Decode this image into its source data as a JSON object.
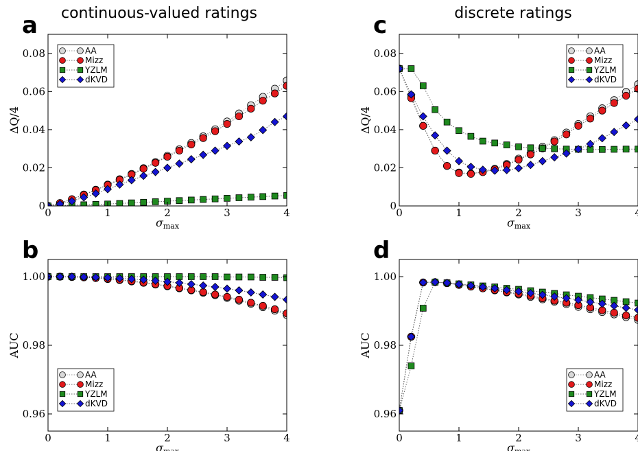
{
  "figure": {
    "col_titles": [
      "continuous-valued ratings",
      "discrete ratings"
    ]
  },
  "series_styles": {
    "AA": {
      "color": "#d9d9d9",
      "marker": "circle",
      "line": "#999999"
    },
    "Mizz": {
      "color": "#e31a1c",
      "marker": "circle",
      "line": "#666666"
    },
    "YZLM": {
      "color": "#1f8a1f",
      "marker": "square",
      "line": "#666666"
    },
    "dKVD": {
      "color": "#1414d2",
      "marker": "diamond",
      "line": "#666666"
    }
  },
  "chart_data": [
    {
      "panel": "a",
      "type": "line",
      "title": "",
      "xlabel": "σ",
      "xlabel_sub": "max",
      "ylabel": "ΔQ/4",
      "xlim": [
        0,
        4
      ],
      "ylim": [
        0,
        0.09
      ],
      "xticks": [
        0,
        1,
        2,
        3,
        4
      ],
      "xtick_labels": [
        "0",
        "1",
        "2",
        "3",
        "4"
      ],
      "yticks": [
        0,
        0.02,
        0.04,
        0.06,
        0.08
      ],
      "ytick_labels": [
        "0",
        "0.02",
        "0.04",
        "0.06",
        "0.08"
      ],
      "legend": "top-left",
      "x": [
        0,
        0.2,
        0.4,
        0.6,
        0.8,
        1.0,
        1.2,
        1.4,
        1.6,
        1.8,
        2.0,
        2.2,
        2.4,
        2.6,
        2.8,
        3.0,
        3.2,
        3.4,
        3.6,
        3.8,
        4.0
      ],
      "series": [
        {
          "name": "AA",
          "values": [
            0,
            0.0015,
            0.0035,
            0.006,
            0.0085,
            0.0112,
            0.014,
            0.0168,
            0.0198,
            0.023,
            0.0263,
            0.0297,
            0.033,
            0.0365,
            0.0402,
            0.0443,
            0.0485,
            0.0528,
            0.0572,
            0.0615,
            0.0658
          ]
        },
        {
          "name": "Mizz",
          "values": [
            0,
            0.0015,
            0.0035,
            0.0058,
            0.0083,
            0.011,
            0.0137,
            0.0165,
            0.0195,
            0.0226,
            0.0258,
            0.029,
            0.0322,
            0.0356,
            0.0392,
            0.043,
            0.047,
            0.051,
            0.0552,
            0.059,
            0.063
          ]
        },
        {
          "name": "YZLM",
          "values": [
            0,
            0.0002,
            0.0004,
            0.0006,
            0.0008,
            0.001,
            0.0013,
            0.0016,
            0.0019,
            0.0022,
            0.0025,
            0.0028,
            0.0031,
            0.0034,
            0.0037,
            0.004,
            0.0043,
            0.0046,
            0.0049,
            0.0052,
            0.0055
          ]
        },
        {
          "name": "dKVD",
          "values": [
            0,
            0.001,
            0.0025,
            0.0045,
            0.0065,
            0.0088,
            0.0112,
            0.0135,
            0.0158,
            0.0178,
            0.02,
            0.0222,
            0.0245,
            0.0268,
            0.029,
            0.0315,
            0.0338,
            0.036,
            0.0398,
            0.044,
            0.047
          ]
        }
      ]
    },
    {
      "panel": "b",
      "type": "line",
      "title": "",
      "xlabel": "σ",
      "xlabel_sub": "max",
      "ylabel": "AUC",
      "xlim": [
        0,
        4
      ],
      "ylim": [
        0.955,
        1.005
      ],
      "xticks": [
        0,
        1,
        2,
        3,
        4
      ],
      "xtick_labels": [
        "0",
        "1",
        "2",
        "3",
        "4"
      ],
      "yticks": [
        0.96,
        0.98,
        1.0
      ],
      "ytick_labels": [
        "0.96",
        "0.98",
        "1.00"
      ],
      "legend": "bottom-left",
      "x": [
        0,
        0.2,
        0.4,
        0.6,
        0.8,
        1.0,
        1.2,
        1.4,
        1.6,
        1.8,
        2.0,
        2.2,
        2.4,
        2.6,
        2.8,
        3.0,
        3.2,
        3.4,
        3.6,
        3.8,
        4.0
      ],
      "series": [
        {
          "name": "AA",
          "values": [
            1.0,
            1.0,
            0.9999,
            0.9998,
            0.9996,
            0.9993,
            0.999,
            0.9986,
            0.9982,
            0.9977,
            0.9972,
            0.9966,
            0.996,
            0.9953,
            0.9946,
            0.9938,
            0.993,
            0.9921,
            0.9911,
            0.9901,
            0.9888
          ]
        },
        {
          "name": "Mizz",
          "values": [
            1.0,
            1.0,
            0.9999,
            0.9998,
            0.9996,
            0.9994,
            0.9991,
            0.9987,
            0.9983,
            0.9978,
            0.9973,
            0.9967,
            0.9961,
            0.9955,
            0.9948,
            0.9941,
            0.9933,
            0.9924,
            0.9915,
            0.9905,
            0.9893
          ]
        },
        {
          "name": "YZLM",
          "values": [
            1.0,
            1.0,
            1.0,
            1.0,
            1.0,
            1.0,
            1.0,
            1.0,
            1.0,
            1.0,
            1.0,
            1.0,
            1.0,
            1.0,
            1.0,
            0.9999,
            0.9999,
            0.9999,
            0.9998,
            0.9998,
            0.9997
          ]
        },
        {
          "name": "dKVD",
          "values": [
            1.0,
            1.0,
            1.0,
            0.9999,
            0.9998,
            0.9997,
            0.9995,
            0.9993,
            0.9991,
            0.9988,
            0.9985,
            0.9982,
            0.9978,
            0.9974,
            0.997,
            0.9965,
            0.996,
            0.9954,
            0.9948,
            0.9941,
            0.9933
          ]
        }
      ]
    },
    {
      "panel": "c",
      "type": "line",
      "title": "",
      "xlabel": "σ",
      "xlabel_sub": "max",
      "ylabel": "ΔQ/4",
      "xlim": [
        0,
        4
      ],
      "ylim": [
        0,
        0.09
      ],
      "xticks": [
        0,
        1,
        2,
        3,
        4
      ],
      "xtick_labels": [
        "0",
        "1",
        "2",
        "3",
        "4"
      ],
      "yticks": [
        0,
        0.02,
        0.04,
        0.06,
        0.08
      ],
      "ytick_labels": [
        "0",
        "0.02",
        "0.04",
        "0.06",
        "0.08"
      ],
      "legend": "top-right",
      "x": [
        0,
        0.2,
        0.4,
        0.6,
        0.8,
        1.0,
        1.2,
        1.4,
        1.6,
        1.8,
        2.0,
        2.2,
        2.4,
        2.6,
        2.8,
        3.0,
        3.2,
        3.4,
        3.6,
        3.8,
        4.0
      ],
      "series": [
        {
          "name": "AA",
          "values": [
            0.072,
            0.058,
            0.042,
            0.029,
            0.021,
            0.0175,
            0.017,
            0.018,
            0.0195,
            0.022,
            0.0248,
            0.0278,
            0.031,
            0.0345,
            0.0385,
            0.043,
            0.047,
            0.0512,
            0.0555,
            0.0598,
            0.0638
          ]
        },
        {
          "name": "Mizz",
          "values": [
            0.072,
            0.0565,
            0.042,
            0.029,
            0.021,
            0.0172,
            0.0168,
            0.0177,
            0.0192,
            0.0215,
            0.0242,
            0.027,
            0.0302,
            0.0338,
            0.0375,
            0.042,
            0.0458,
            0.05,
            0.054,
            0.0578,
            0.0615
          ]
        },
        {
          "name": "YZLM",
          "values": [
            0.072,
            0.072,
            0.063,
            0.0505,
            0.044,
            0.0395,
            0.0365,
            0.034,
            0.033,
            0.032,
            0.031,
            0.0305,
            0.0302,
            0.03,
            0.0298,
            0.0297,
            0.0296,
            0.0296,
            0.0297,
            0.0298,
            0.0298
          ]
        },
        {
          "name": "dKVD",
          "values": [
            0.072,
            0.0585,
            0.047,
            0.037,
            0.029,
            0.0235,
            0.0205,
            0.019,
            0.0185,
            0.0188,
            0.0198,
            0.0215,
            0.0235,
            0.0255,
            0.0275,
            0.0298,
            0.0325,
            0.0355,
            0.0388,
            0.0422,
            0.0455
          ]
        }
      ]
    },
    {
      "panel": "d",
      "type": "line",
      "title": "",
      "xlabel": "σ",
      "xlabel_sub": "max",
      "ylabel": "AUC",
      "xlim": [
        0,
        4
      ],
      "ylim": [
        0.955,
        1.005
      ],
      "xticks": [
        0,
        1,
        2,
        3,
        4
      ],
      "xtick_labels": [
        "0",
        "1",
        "2",
        "3",
        "4"
      ],
      "yticks": [
        0.96,
        0.98,
        1.0
      ],
      "ytick_labels": [
        "0.96",
        "0.98",
        "1.00"
      ],
      "legend": "bottom-right",
      "x": [
        0,
        0.2,
        0.4,
        0.6,
        0.8,
        1.0,
        1.2,
        1.4,
        1.6,
        1.8,
        2.0,
        2.2,
        2.4,
        2.6,
        2.8,
        3.0,
        3.2,
        3.4,
        3.6,
        3.8,
        4.0
      ],
      "series": [
        {
          "name": "AA",
          "values": [
            0.961,
            0.9825,
            0.9983,
            0.9984,
            0.9981,
            0.9976,
            0.9971,
            0.9966,
            0.996,
            0.9954,
            0.9948,
            0.9941,
            0.9934,
            0.9927,
            0.992,
            0.9912,
            0.9905,
            0.9897,
            0.989,
            0.9882,
            0.9874
          ]
        },
        {
          "name": "Mizz",
          "values": [
            0.961,
            0.9825,
            0.9983,
            0.9984,
            0.9981,
            0.9976,
            0.9971,
            0.9966,
            0.9961,
            0.9955,
            0.995,
            0.9944,
            0.9937,
            0.993,
            0.9924,
            0.9917,
            0.991,
            0.9902,
            0.9895,
            0.9887,
            0.988
          ]
        },
        {
          "name": "YZLM",
          "values": [
            0.961,
            0.974,
            0.9908,
            0.9984,
            0.9982,
            0.9979,
            0.9976,
            0.9973,
            0.997,
            0.9966,
            0.9963,
            0.9959,
            0.9955,
            0.9951,
            0.9947,
            0.9943,
            0.9939,
            0.9935,
            0.9931,
            0.9927,
            0.9923
          ]
        },
        {
          "name": "dKVD",
          "values": [
            0.961,
            0.9825,
            0.9983,
            0.9984,
            0.9982,
            0.9978,
            0.9974,
            0.997,
            0.9966,
            0.9961,
            0.9957,
            0.9952,
            0.9947,
            0.9942,
            0.9937,
            0.9932,
            0.9926,
            0.9921,
            0.9915,
            0.9909,
            0.9903
          ]
        }
      ]
    }
  ]
}
